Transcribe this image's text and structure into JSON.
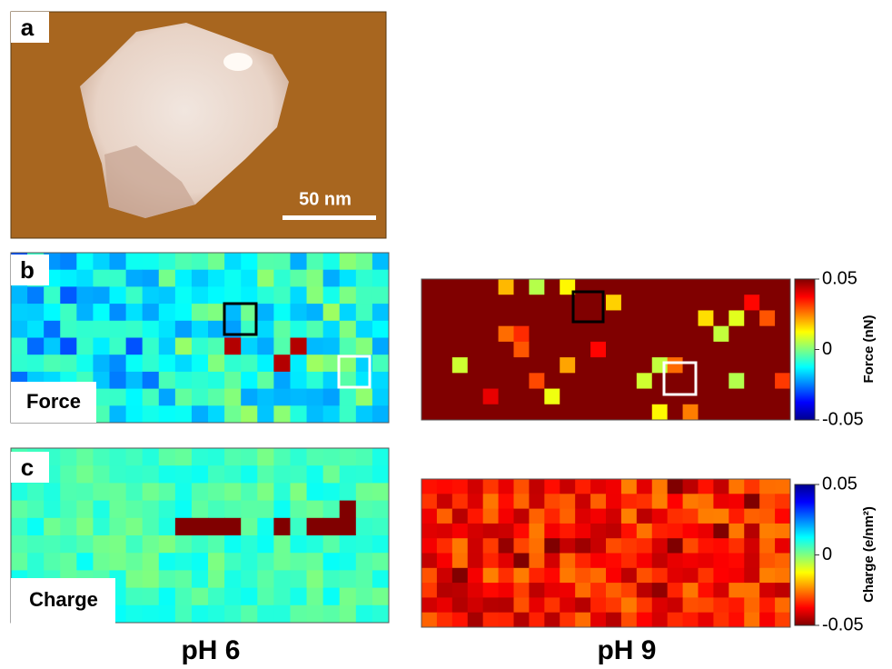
{
  "panels": [
    {
      "label": "a",
      "scale_bar": "50 nm"
    },
    {
      "label": "b",
      "title": "Force"
    },
    {
      "label": "c",
      "title": "Charge"
    }
  ],
  "colorbars": [
    {
      "label": "Force (nN)",
      "ticks": [
        0.05,
        0,
        -0.05
      ]
    },
    {
      "label": "Charge (e/nm²)",
      "ticks": [
        0.05,
        0,
        -0.05
      ]
    }
  ],
  "columns": [
    "pH 6",
    "pH 9"
  ]
}
